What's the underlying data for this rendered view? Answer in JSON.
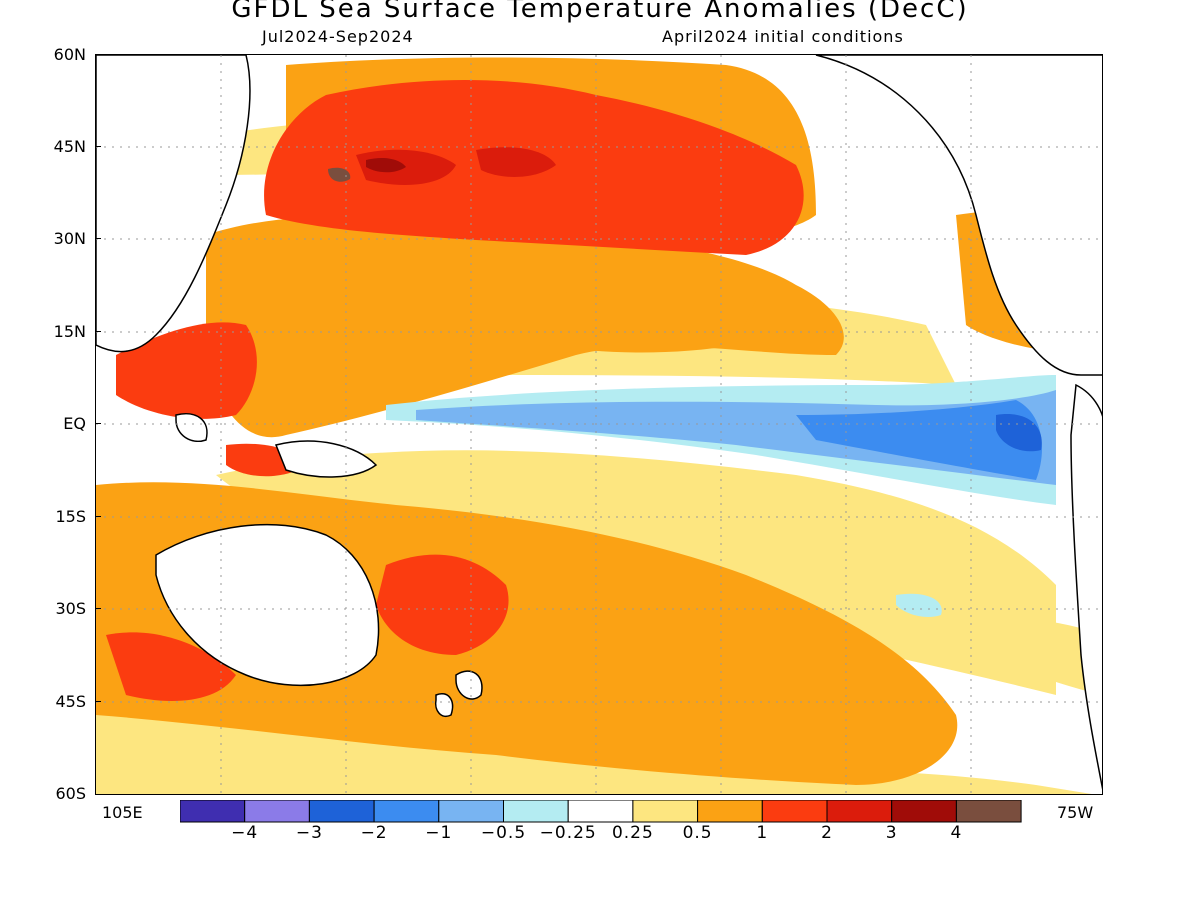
{
  "header": {
    "title": "GFDL Sea Surface Temperature Anomalies (DecC)",
    "period": "Jul2024-Sep2024",
    "init": "April2024 initial conditions"
  },
  "axes": {
    "lat_labels": [
      "60N",
      "45N",
      "30N",
      "15N",
      "EQ",
      "15S",
      "30S",
      "45S",
      "60S"
    ],
    "lon_left": "105E",
    "lon_right": "75W"
  },
  "legend": {
    "labels": [
      "-4",
      "-3",
      "-2",
      "-1",
      "-0.5",
      "-0.25",
      "0.25",
      "0.5",
      "1",
      "2",
      "3",
      "4"
    ],
    "colors": [
      "#3f2eb0",
      "#8b7be8",
      "#1e62d8",
      "#3c8cf0",
      "#78b4f2",
      "#b4ecf2",
      "#ffffff",
      "#fde680",
      "#fba214",
      "#fb3c10",
      "#db1c0c",
      "#a00c08",
      "#7a4e3e"
    ]
  },
  "colors": {
    "ocean_neutral": "#ffffff",
    "land_outline": "#000000",
    "grid": "#999999"
  }
}
